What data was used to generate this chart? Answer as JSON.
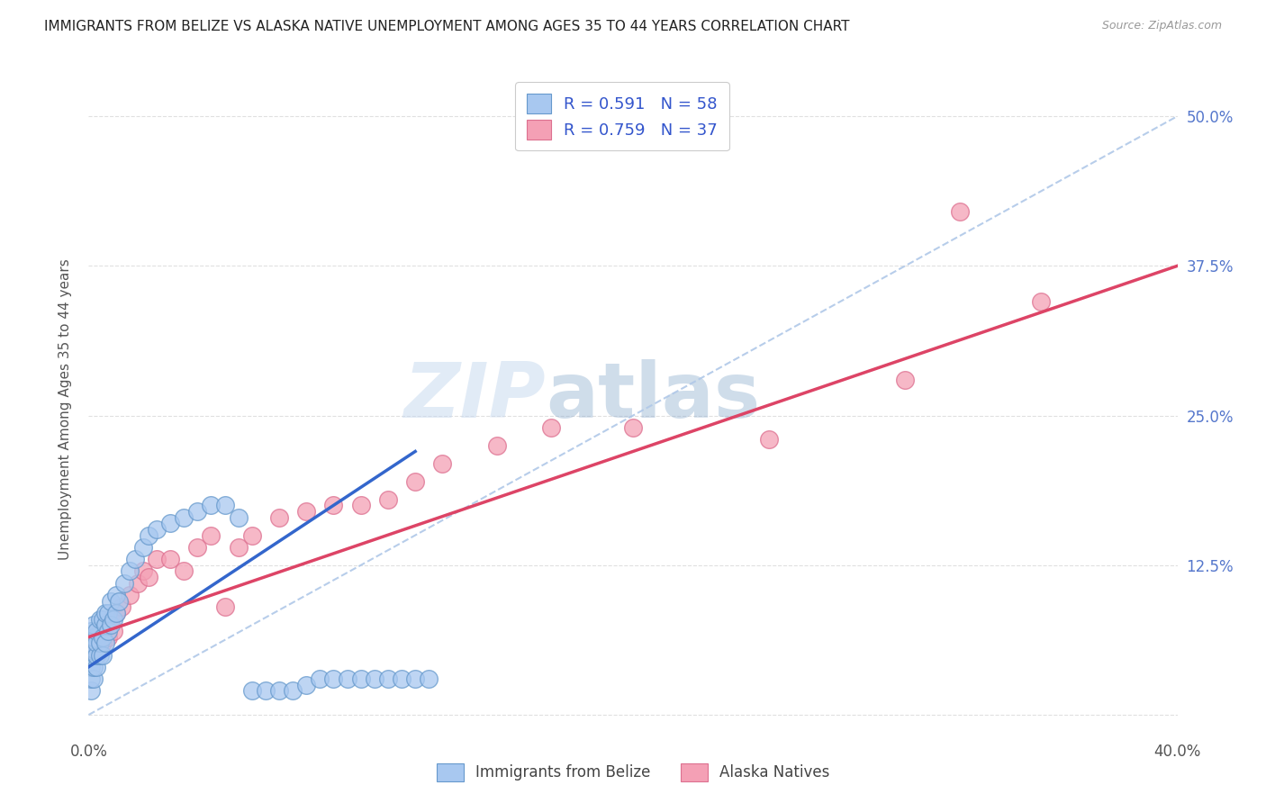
{
  "title": "IMMIGRANTS FROM BELIZE VS ALASKA NATIVE UNEMPLOYMENT AMONG AGES 35 TO 44 YEARS CORRELATION CHART",
  "source": "Source: ZipAtlas.com",
  "xmin": 0.0,
  "xmax": 0.4,
  "ymin": -0.02,
  "ymax": 0.53,
  "watermark_zip": "ZIP",
  "watermark_atlas": "atlas",
  "legend_r1": "R = 0.591",
  "legend_n1": "N = 58",
  "legend_r2": "R = 0.759",
  "legend_n2": "N = 37",
  "series1_label": "Immigrants from Belize",
  "series2_label": "Alaska Natives",
  "series1_color": "#a8c8f0",
  "series2_color": "#f4a0b5",
  "series1_edge": "#6699cc",
  "series2_edge": "#dd7090",
  "line1_color": "#3366cc",
  "line2_color": "#dd4466",
  "ref_line_color": "#b0c8e8",
  "background_color": "#ffffff",
  "grid_color": "#e0e0e0",
  "title_color": "#222222",
  "belize_x": [
    0.001,
    0.001,
    0.001,
    0.001,
    0.001,
    0.001,
    0.002,
    0.002,
    0.002,
    0.002,
    0.002,
    0.003,
    0.003,
    0.003,
    0.003,
    0.004,
    0.004,
    0.004,
    0.005,
    0.005,
    0.005,
    0.006,
    0.006,
    0.006,
    0.007,
    0.007,
    0.008,
    0.008,
    0.009,
    0.01,
    0.01,
    0.011,
    0.013,
    0.015,
    0.017,
    0.02,
    0.022,
    0.025,
    0.03,
    0.035,
    0.04,
    0.045,
    0.05,
    0.055,
    0.06,
    0.065,
    0.07,
    0.075,
    0.08,
    0.085,
    0.09,
    0.095,
    0.1,
    0.105,
    0.11,
    0.115,
    0.12,
    0.125
  ],
  "belize_y": [
    0.02,
    0.03,
    0.04,
    0.05,
    0.06,
    0.07,
    0.03,
    0.04,
    0.055,
    0.065,
    0.075,
    0.04,
    0.05,
    0.06,
    0.07,
    0.05,
    0.06,
    0.08,
    0.05,
    0.065,
    0.08,
    0.06,
    0.075,
    0.085,
    0.07,
    0.085,
    0.075,
    0.095,
    0.08,
    0.085,
    0.1,
    0.095,
    0.11,
    0.12,
    0.13,
    0.14,
    0.15,
    0.155,
    0.16,
    0.165,
    0.17,
    0.175,
    0.175,
    0.165,
    0.02,
    0.02,
    0.02,
    0.02,
    0.025,
    0.03,
    0.03,
    0.03,
    0.03,
    0.03,
    0.03,
    0.03,
    0.03,
    0.03
  ],
  "alaska_x": [
    0.001,
    0.002,
    0.003,
    0.004,
    0.005,
    0.006,
    0.007,
    0.008,
    0.009,
    0.01,
    0.012,
    0.015,
    0.018,
    0.02,
    0.022,
    0.025,
    0.03,
    0.035,
    0.04,
    0.045,
    0.05,
    0.055,
    0.06,
    0.07,
    0.08,
    0.09,
    0.1,
    0.11,
    0.12,
    0.13,
    0.15,
    0.17,
    0.2,
    0.25,
    0.3,
    0.32,
    0.35
  ],
  "alaska_y": [
    0.05,
    0.06,
    0.05,
    0.07,
    0.06,
    0.075,
    0.065,
    0.08,
    0.07,
    0.085,
    0.09,
    0.1,
    0.11,
    0.12,
    0.115,
    0.13,
    0.13,
    0.12,
    0.14,
    0.15,
    0.09,
    0.14,
    0.15,
    0.165,
    0.17,
    0.175,
    0.175,
    0.18,
    0.195,
    0.21,
    0.225,
    0.24,
    0.24,
    0.23,
    0.28,
    0.42,
    0.345
  ],
  "belize_line_x": [
    0.0,
    0.12
  ],
  "belize_line_y": [
    0.04,
    0.22
  ],
  "alaska_line_x": [
    0.0,
    0.4
  ],
  "alaska_line_y": [
    0.065,
    0.375
  ],
  "ref_line_x": [
    0.0,
    0.4
  ],
  "ref_line_y": [
    0.0,
    0.5
  ]
}
